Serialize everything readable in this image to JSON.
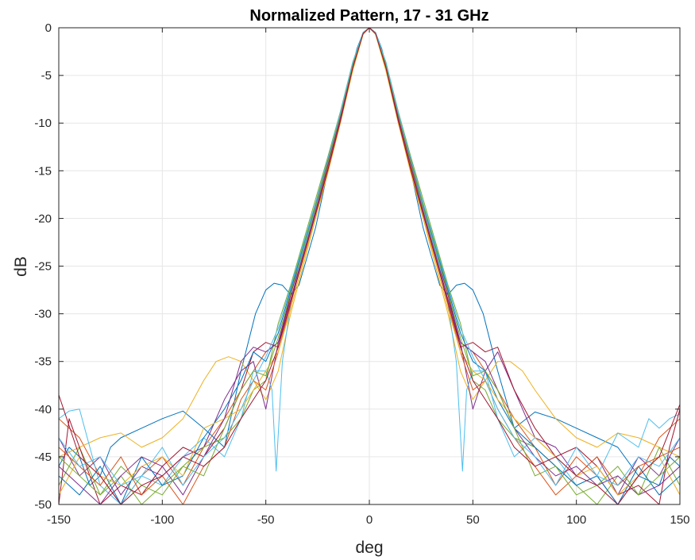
{
  "chart_data": {
    "type": "line",
    "title": "Normalized Pattern, 17 - 31 GHz",
    "xlabel": "deg",
    "ylabel": "dB",
    "xlim": [
      -150,
      150
    ],
    "ylim": [
      -50,
      0
    ],
    "xticks": [
      -150,
      -100,
      -50,
      0,
      50,
      100,
      150
    ],
    "yticks": [
      0,
      -5,
      -10,
      -15,
      -20,
      -25,
      -30,
      -35,
      -40,
      -45,
      -50
    ],
    "grid": true,
    "legend": "none",
    "colors": [
      "#0072BD",
      "#D95319",
      "#EDB120",
      "#7E2F8E",
      "#77AC30",
      "#4DBEEE",
      "#A2142F"
    ],
    "series": [
      {
        "x": [
          -150,
          -145,
          -140,
          -135,
          -130,
          -125,
          -120,
          -110,
          -100,
          -90,
          -80,
          -70,
          -62,
          -55,
          -50,
          -46,
          -42,
          -38,
          -34,
          -30,
          -26,
          -22,
          -18,
          -14,
          -10,
          -6,
          -3,
          0,
          3,
          6,
          10,
          14,
          18,
          22,
          26,
          30,
          34,
          38,
          42,
          46,
          50,
          55,
          62,
          70,
          80,
          90,
          100,
          110,
          120,
          130,
          140,
          145,
          150
        ],
        "y": [
          -46,
          -44,
          -45,
          -48,
          -47,
          -44,
          -43,
          -42,
          -41,
          -40.2,
          -42,
          -44,
          -36,
          -30,
          -27.5,
          -26.8,
          -27,
          -28,
          -27,
          -24,
          -21,
          -17,
          -13,
          -9.5,
          -5.5,
          -2.2,
          -0.5,
          0,
          -0.5,
          -2.2,
          -5.5,
          -9.5,
          -13,
          -17,
          -21,
          -24,
          -27,
          -28,
          -27,
          -26.8,
          -27.5,
          -30,
          -36,
          -42,
          -40.3,
          -41,
          -42,
          -43,
          -44,
          -47,
          -48,
          -45,
          -46
        ]
      },
      {
        "x": [
          -150,
          -140,
          -130,
          -120,
          -110,
          -100,
          -90,
          -80,
          -70,
          -62,
          -56,
          -50,
          -44,
          -38,
          -32,
          -26,
          -20,
          -14,
          -8,
          -3,
          0,
          3,
          8,
          14,
          20,
          26,
          32,
          38,
          44,
          50,
          56,
          62,
          70,
          80,
          90,
          100,
          110,
          120,
          130,
          140,
          150
        ],
        "y": [
          -41,
          -43,
          -47,
          -50,
          -47,
          -45,
          -48,
          -44,
          -41,
          -38,
          -36,
          -34,
          -33,
          -29,
          -24,
          -19.5,
          -14.5,
          -9.5,
          -4,
          -0.6,
          0,
          -0.6,
          -4,
          -9.5,
          -14.5,
          -19.5,
          -24,
          -29,
          -33,
          -34,
          -36,
          -38,
          -41,
          -44,
          -48,
          -45,
          -47,
          -50,
          -47,
          -43,
          -41
        ]
      },
      {
        "x": [
          -150,
          -140,
          -130,
          -120,
          -110,
          -100,
          -90,
          -80,
          -74,
          -68,
          -62,
          -56,
          -50,
          -44,
          -38,
          -32,
          -26,
          -20,
          -14,
          -8,
          -3,
          0,
          3,
          8,
          14,
          20,
          26,
          32,
          38,
          44,
          50,
          56,
          62,
          68,
          74,
          80,
          90,
          100,
          110,
          120,
          130,
          140,
          150
        ],
        "y": [
          -45,
          -44,
          -43,
          -42.5,
          -44,
          -43,
          -41,
          -37,
          -35,
          -34.5,
          -35,
          -37,
          -39,
          -36,
          -30,
          -25,
          -20,
          -15,
          -10,
          -4.5,
          -0.7,
          0,
          -0.7,
          -4.5,
          -10,
          -15,
          -20,
          -25,
          -30,
          -36,
          -39,
          -37,
          -35,
          -35,
          -36,
          -38,
          -41,
          -43,
          -44,
          -42.5,
          -43,
          -44,
          -45
        ]
      },
      {
        "x": [
          -150,
          -140,
          -130,
          -120,
          -110,
          -100,
          -90,
          -80,
          -70,
          -62,
          -56,
          -50,
          -44,
          -38,
          -32,
          -26,
          -20,
          -14,
          -8,
          -3,
          0,
          3,
          8,
          14,
          20,
          26,
          32,
          38,
          44,
          50,
          56,
          62,
          70,
          80,
          90,
          100,
          110,
          120,
          130,
          140,
          150
        ],
        "y": [
          -43,
          -47,
          -45,
          -49,
          -46,
          -47,
          -45,
          -44,
          -39,
          -36,
          -35,
          -40,
          -33,
          -28,
          -23.5,
          -19,
          -14,
          -9,
          -3.8,
          -0.5,
          0,
          -0.5,
          -3.8,
          -9,
          -14,
          -19,
          -23.5,
          -28,
          -33,
          -40,
          -36,
          -34,
          -38,
          -43,
          -44,
          -47,
          -45,
          -49,
          -45,
          -47,
          -43
        ]
      },
      {
        "x": [
          -150,
          -140,
          -130,
          -120,
          -110,
          -100,
          -90,
          -80,
          -70,
          -62,
          -56,
          -50,
          -44,
          -38,
          -32,
          -26,
          -20,
          -14,
          -8,
          -3,
          0,
          3,
          8,
          14,
          20,
          26,
          32,
          38,
          44,
          50,
          56,
          62,
          70,
          80,
          90,
          100,
          110,
          120,
          130,
          140,
          150
        ],
        "y": [
          -48,
          -44,
          -49,
          -47,
          -50,
          -48,
          -46,
          -44,
          -43,
          -41,
          -38,
          -37,
          -31,
          -27,
          -22.5,
          -18,
          -13.5,
          -8.8,
          -3.6,
          -0.5,
          0,
          -0.5,
          -3.6,
          -8.8,
          -13.5,
          -18,
          -22.5,
          -27,
          -31,
          -37,
          -38,
          -41,
          -43,
          -44,
          -46,
          -48,
          -50,
          -47,
          -49,
          -44,
          -48
        ]
      },
      {
        "x": [
          -150,
          -145,
          -140,
          -135,
          -130,
          -120,
          -110,
          -100,
          -90,
          -80,
          -70,
          -62,
          -56,
          -50,
          -47,
          -45,
          -42,
          -38,
          -34,
          -30,
          -26,
          -22,
          -18,
          -14,
          -10,
          -6,
          -3,
          0,
          3,
          6,
          10,
          14,
          18,
          22,
          26,
          30,
          34,
          38,
          42,
          45,
          47,
          50,
          56,
          62,
          70,
          80,
          90,
          100,
          110,
          120,
          130,
          135,
          140,
          145,
          150
        ],
        "y": [
          -41,
          -40.2,
          -40,
          -44,
          -48,
          -50,
          -47,
          -48,
          -45,
          -43,
          -45,
          -41,
          -36,
          -36,
          -38,
          -46.5,
          -35,
          -29,
          -25,
          -22,
          -19,
          -16,
          -12.5,
          -9,
          -5.8,
          -2.4,
          -0.6,
          0,
          -0.6,
          -2.4,
          -5.8,
          -9,
          -12.5,
          -16,
          -19,
          -22,
          -25,
          -29,
          -35,
          -46.5,
          -38,
          -36,
          -36,
          -41,
          -45,
          -43,
          -45,
          -48,
          -47,
          -42.5,
          -44,
          -41,
          -42,
          -41,
          -40.5
        ]
      },
      {
        "x": [
          -150,
          -145,
          -140,
          -130,
          -120,
          -110,
          -100,
          -90,
          -80,
          -70,
          -62,
          -56,
          -50,
          -44,
          -38,
          -32,
          -26,
          -20,
          -14,
          -8,
          -3,
          0,
          3,
          8,
          14,
          20,
          26,
          32,
          38,
          44,
          50,
          56,
          62,
          70,
          80,
          90,
          100,
          110,
          120,
          130,
          140,
          145,
          150
        ],
        "y": [
          -50,
          -41,
          -44,
          -50,
          -48,
          -49,
          -46,
          -44,
          -45,
          -42,
          -38,
          -34,
          -33,
          -33.5,
          -28,
          -23,
          -18.5,
          -13.8,
          -9,
          -3.9,
          -0.5,
          0,
          -0.5,
          -3.9,
          -9,
          -13.8,
          -18.5,
          -23,
          -28,
          -33.5,
          -33,
          -34,
          -33.5,
          -38,
          -42,
          -45,
          -44,
          -46,
          -49,
          -48,
          -50,
          -44,
          -40
        ]
      },
      {
        "x": [
          -150,
          -140,
          -130,
          -120,
          -110,
          -100,
          -90,
          -80,
          -70,
          -62,
          -56,
          -50,
          -44,
          -38,
          -32,
          -26,
          -20,
          -14,
          -8,
          -3,
          0,
          3,
          8,
          14,
          20,
          26,
          32,
          38,
          44,
          50,
          56,
          62,
          70,
          80,
          90,
          100,
          110,
          120,
          130,
          140,
          150
        ],
        "y": [
          -47,
          -49,
          -46,
          -50,
          -45,
          -48,
          -47,
          -43,
          -40,
          -37,
          -34,
          -35,
          -32,
          -27.5,
          -23,
          -18.7,
          -14.2,
          -9.2,
          -3.7,
          -0.6,
          0,
          -0.6,
          -3.7,
          -9.2,
          -14.2,
          -18.7,
          -23,
          -27.5,
          -32,
          -35,
          -36,
          -39,
          -42,
          -44,
          -46,
          -48,
          -47,
          -50,
          -46,
          -49,
          -47
        ]
      },
      {
        "x": [
          -150,
          -140,
          -130,
          -120,
          -110,
          -100,
          -90,
          -80,
          -70,
          -62,
          -56,
          -50,
          -44,
          -38,
          -32,
          -26,
          -20,
          -14,
          -8,
          -3,
          0,
          3,
          8,
          14,
          20,
          26,
          32,
          38,
          44,
          50,
          56,
          62,
          70,
          80,
          90,
          100,
          110,
          120,
          130,
          140,
          150
        ],
        "y": [
          -44,
          -46,
          -48,
          -45,
          -49,
          -47,
          -50,
          -46,
          -44,
          -39,
          -37,
          -38,
          -34,
          -29,
          -24,
          -19.2,
          -14.8,
          -9.7,
          -4.1,
          -0.6,
          0,
          -0.6,
          -4.1,
          -9.7,
          -14.8,
          -19.2,
          -24,
          -29,
          -34,
          -38,
          -37,
          -40,
          -43,
          -46,
          -49,
          -47,
          -45,
          -48,
          -46,
          -45,
          -44
        ]
      },
      {
        "x": [
          -150,
          -140,
          -130,
          -120,
          -110,
          -100,
          -90,
          -80,
          -70,
          -62,
          -56,
          -50,
          -44,
          -38,
          -32,
          -26,
          -20,
          -14,
          -8,
          -3,
          0,
          3,
          8,
          14,
          20,
          26,
          32,
          38,
          44,
          50,
          56,
          62,
          70,
          80,
          90,
          100,
          110,
          120,
          130,
          140,
          150
        ],
        "y": [
          -49,
          -45,
          -47,
          -48,
          -46,
          -45,
          -47,
          -42,
          -41,
          -40,
          -38,
          -36,
          -34,
          -29.5,
          -24.5,
          -20,
          -15.2,
          -10,
          -4.3,
          -0.7,
          0,
          -0.7,
          -4.3,
          -10,
          -15.2,
          -20,
          -24.5,
          -29.5,
          -34,
          -36,
          -37,
          -39,
          -41,
          -43,
          -45,
          -47,
          -46,
          -49,
          -47,
          -45,
          -49
        ]
      },
      {
        "x": [
          -150,
          -140,
          -130,
          -120,
          -110,
          -100,
          -90,
          -80,
          -70,
          -62,
          -56,
          -50,
          -44,
          -38,
          -32,
          -26,
          -20,
          -14,
          -8,
          -3,
          0,
          3,
          8,
          14,
          20,
          26,
          32,
          38,
          44,
          50,
          56,
          62,
          70,
          80,
          90,
          100,
          110,
          120,
          130,
          140,
          150
        ],
        "y": [
          -46,
          -48,
          -50,
          -47,
          -45,
          -46,
          -49,
          -45,
          -41,
          -35,
          -33.5,
          -34,
          -33,
          -28.5,
          -23.8,
          -19.3,
          -14.4,
          -9.4,
          -3.9,
          -0.6,
          0,
          -0.6,
          -3.9,
          -9.4,
          -14.4,
          -19.3,
          -23.8,
          -28.5,
          -33,
          -34,
          -35,
          -38,
          -42,
          -45,
          -47,
          -46,
          -48,
          -47,
          -49,
          -48,
          -46
        ]
      },
      {
        "x": [
          -150,
          -140,
          -130,
          -120,
          -110,
          -100,
          -90,
          -80,
          -70,
          -62,
          -56,
          -50,
          -44,
          -38,
          -32,
          -26,
          -20,
          -14,
          -8,
          -3,
          0,
          3,
          8,
          14,
          20,
          26,
          32,
          38,
          44,
          50,
          56,
          62,
          70,
          80,
          90,
          100,
          110,
          120,
          130,
          140,
          150
        ],
        "y": [
          -45,
          -47,
          -49,
          -46,
          -48,
          -49,
          -46,
          -47,
          -42,
          -38,
          -36,
          -36.5,
          -32.5,
          -27.8,
          -23.2,
          -18.8,
          -14.1,
          -9.1,
          -3.8,
          -0.5,
          0,
          -0.5,
          -3.8,
          -9.1,
          -14.1,
          -18.8,
          -23.2,
          -27.8,
          -32.5,
          -36.5,
          -36,
          -38,
          -42,
          -47,
          -46,
          -49,
          -48,
          -46,
          -49,
          -47,
          -45
        ]
      },
      {
        "x": [
          -150,
          -140,
          -130,
          -120,
          -110,
          -100,
          -90,
          -80,
          -70,
          -62,
          -56,
          -50,
          -44,
          -38,
          -32,
          -26,
          -20,
          -14,
          -8,
          -3,
          0,
          3,
          8,
          14,
          20,
          26,
          32,
          38,
          44,
          50,
          56,
          62,
          70,
          80,
          90,
          100,
          110,
          120,
          130,
          140,
          150
        ],
        "y": [
          -43,
          -46,
          -45,
          -48,
          -47,
          -44,
          -48,
          -45,
          -43,
          -40,
          -37,
          -34.5,
          -31.5,
          -27.2,
          -22.8,
          -18.4,
          -13.7,
          -8.9,
          -3.6,
          -0.5,
          0,
          -0.5,
          -3.6,
          -8.9,
          -13.7,
          -18.4,
          -22.8,
          -27.2,
          -31.5,
          -34.5,
          -37,
          -40,
          -43,
          -45,
          -48,
          -44,
          -47,
          -48,
          -45,
          -46,
          -43
        ]
      },
      {
        "x": [
          -150,
          -140,
          -130,
          -120,
          -110,
          -100,
          -90,
          -80,
          -70,
          -62,
          -56,
          -50,
          -44,
          -38,
          -32,
          -26,
          -20,
          -14,
          -8,
          -3,
          0,
          3,
          8,
          14,
          20,
          26,
          32,
          38,
          44,
          50,
          56,
          62,
          70,
          80,
          90,
          100,
          110,
          120,
          130,
          140,
          150
        ],
        "y": [
          -38.5,
          -45,
          -47,
          -50,
          -48,
          -47,
          -45,
          -46,
          -44,
          -41,
          -39,
          -37,
          -33.5,
          -28.8,
          -24.2,
          -19.6,
          -14.9,
          -9.8,
          -4.2,
          -0.6,
          0,
          -0.6,
          -4.2,
          -9.8,
          -14.9,
          -19.6,
          -24.2,
          -28.8,
          -33.5,
          -37,
          -39,
          -41,
          -44,
          -46,
          -45,
          -47,
          -48,
          -50,
          -47,
          -45,
          -39.5
        ]
      }
    ]
  }
}
